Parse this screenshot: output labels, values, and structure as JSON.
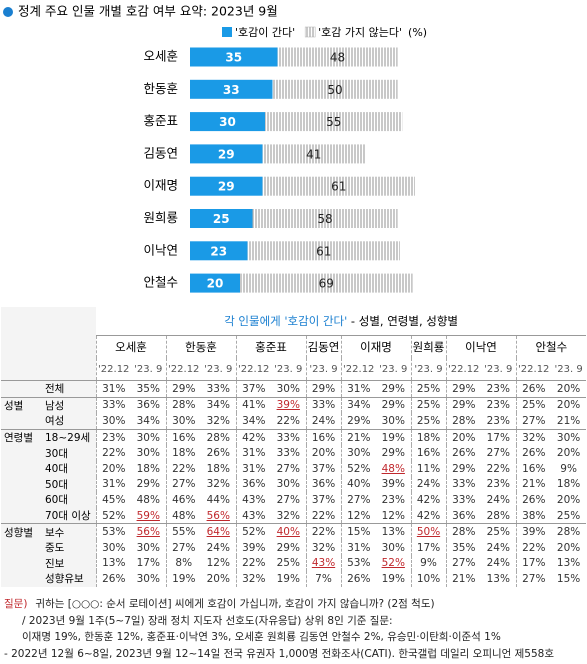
{
  "chart_data": {
    "type": "bar",
    "stacked": true,
    "orientation": "horizontal",
    "title": "정계 주요 인물 개별 호감 여부 요약: 2023년 9월",
    "unit_label": "(%)",
    "categories": [
      "오세훈",
      "한동훈",
      "홍준표",
      "김동연",
      "이재명",
      "원희룡",
      "이낙연",
      "안철수"
    ],
    "series": [
      {
        "name": "'호감이 간다'",
        "color": "#1a9ae6",
        "values": [
          35,
          33,
          30,
          29,
          29,
          25,
          23,
          20
        ]
      },
      {
        "name": "'호감 가지 않는다'",
        "color": "#b0b0b0",
        "pattern": "hatch",
        "values": [
          48,
          50,
          55,
          41,
          61,
          58,
          61,
          69
        ]
      }
    ]
  },
  "table": {
    "title": "각 인물에게 '호감이 간다'",
    "subtitle": " - 성별, 연령별, 성향별",
    "people": [
      {
        "name": "오세훈",
        "periods": [
          "'22.12",
          "'23. 9"
        ]
      },
      {
        "name": "한동훈",
        "periods": [
          "'22.12",
          "'23. 9"
        ]
      },
      {
        "name": "홍준표",
        "periods": [
          "'22.12",
          "'23. 9"
        ]
      },
      {
        "name": "김동연",
        "periods": [
          "'23. 9"
        ]
      },
      {
        "name": "이재명",
        "periods": [
          "'22.12",
          "'23. 9"
        ]
      },
      {
        "name": "원희룡",
        "periods": [
          "'23. 9"
        ]
      },
      {
        "name": "이낙연",
        "periods": [
          "'22.12",
          "'23. 9"
        ]
      },
      {
        "name": "안철수",
        "periods": [
          "'22.12",
          "'23. 9"
        ]
      }
    ],
    "rows": [
      {
        "label": "전체",
        "cells": [
          "31%",
          "35%",
          "29%",
          "33%",
          "37%",
          "30%",
          "29%",
          "31%",
          "29%",
          "25%",
          "29%",
          "23%",
          "26%",
          "20%"
        ]
      },
      {
        "group": "성별",
        "label": "남성",
        "cells": [
          "33%",
          "36%",
          "28%",
          "34%",
          "41%",
          {
            "text": "39%",
            "highlight": true
          },
          "33%",
          "34%",
          "29%",
          "25%",
          "29%",
          "23%",
          "25%",
          "20%"
        ]
      },
      {
        "label": "여성",
        "cells": [
          "30%",
          "34%",
          "30%",
          "32%",
          "34%",
          "22%",
          "24%",
          "29%",
          "30%",
          "25%",
          "28%",
          "23%",
          "27%",
          "21%"
        ]
      },
      {
        "group": "연령별",
        "label": "18~29세",
        "cells": [
          "23%",
          "30%",
          "16%",
          "28%",
          "42%",
          "33%",
          "16%",
          "21%",
          "19%",
          "18%",
          "20%",
          "17%",
          "32%",
          "30%"
        ]
      },
      {
        "label": "30대",
        "cells": [
          "22%",
          "30%",
          "18%",
          "26%",
          "31%",
          "33%",
          "20%",
          "30%",
          "29%",
          "16%",
          "26%",
          "27%",
          "26%",
          "20%"
        ]
      },
      {
        "label": "40대",
        "cells": [
          "20%",
          "18%",
          "22%",
          "18%",
          "31%",
          "27%",
          "37%",
          "52%",
          {
            "text": "48%",
            "highlight": true
          },
          "11%",
          "29%",
          "22%",
          "16%",
          "9%"
        ]
      },
      {
        "label": "50대",
        "cells": [
          "31%",
          "29%",
          "27%",
          "32%",
          "36%",
          "30%",
          "36%",
          "40%",
          "39%",
          "24%",
          "33%",
          "23%",
          "21%",
          "18%"
        ]
      },
      {
        "label": "60대",
        "cells": [
          "45%",
          "48%",
          "46%",
          "44%",
          "43%",
          "27%",
          "37%",
          "27%",
          "23%",
          "42%",
          "33%",
          "24%",
          "26%",
          "20%"
        ]
      },
      {
        "label": "70대 이상",
        "cells": [
          "52%",
          {
            "text": "59%",
            "highlight": true
          },
          "48%",
          {
            "text": "56%",
            "highlight": true
          },
          "43%",
          "32%",
          "22%",
          "12%",
          "12%",
          "42%",
          "36%",
          "28%",
          "38%",
          "25%"
        ]
      },
      {
        "group": "성향별",
        "label": "보수",
        "cells": [
          "53%",
          {
            "text": "56%",
            "highlight": true
          },
          "55%",
          {
            "text": "64%",
            "highlight": true
          },
          "52%",
          {
            "text": "40%",
            "highlight": true
          },
          "22%",
          "15%",
          "13%",
          {
            "text": "50%",
            "highlight": true
          },
          "28%",
          "25%",
          "39%",
          "28%"
        ]
      },
      {
        "label": "중도",
        "cells": [
          "30%",
          "30%",
          "27%",
          "24%",
          "39%",
          "29%",
          "32%",
          "31%",
          "30%",
          "17%",
          "35%",
          "24%",
          "22%",
          "20%"
        ]
      },
      {
        "label": "진보",
        "cells": [
          "13%",
          "17%",
          "8%",
          "12%",
          "22%",
          "25%",
          {
            "text": "43%",
            "highlight": true
          },
          "53%",
          {
            "text": "52%",
            "highlight": true
          },
          "9%",
          "27%",
          "24%",
          "17%",
          "13%"
        ]
      },
      {
        "label": "성향유보",
        "cells": [
          "26%",
          "30%",
          "19%",
          "20%",
          "32%",
          "19%",
          "7%",
          "26%",
          "19%",
          "10%",
          "21%",
          "13%",
          "27%",
          "15%"
        ]
      }
    ]
  },
  "notes": {
    "question_tag": "질문)",
    "lines": [
      "귀하는 [○○○: 순서 로테이션] 씨에게 호감이 가십니까, 호감이 가지 않습니까? (2점 척도)",
      "/ 2023년 9월 1주(5~7일) 장래 정치 지도자 선호도(자유응답) 상위 8인 기준 질문:",
      "이재명 19%, 한동훈 12%, 홍준표·이낙연 3%, 오세훈 원희룡 김동연 안철수 2%, 유승민·이탄희·이준석 1%",
      "- 2022년 12월 6~8일, 2023년 9월 12~14일 전국 유권자 1,000명 전화조사(CATI). 한국갤럽 데일리 오피니언 제558호"
    ]
  }
}
